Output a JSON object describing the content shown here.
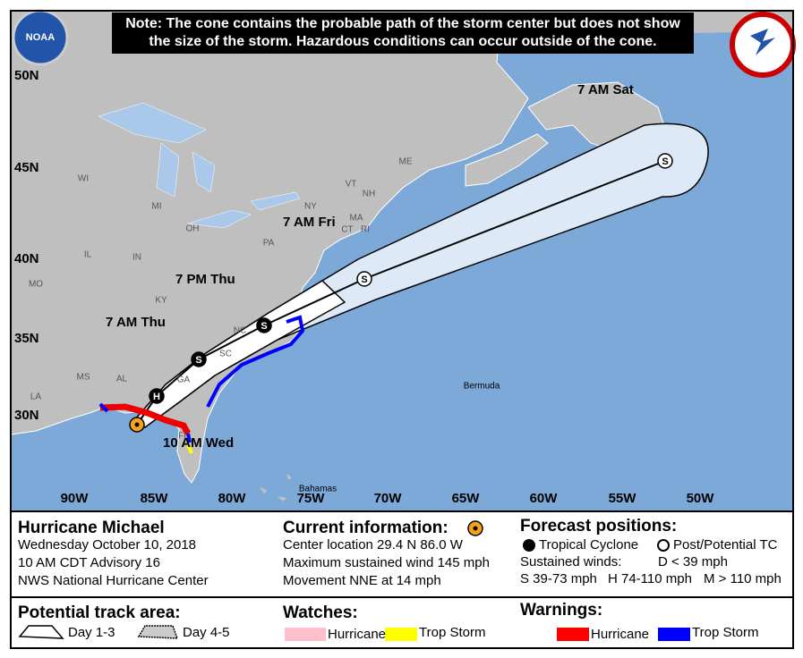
{
  "note": [
    "Note: The cone contains the probable path of the storm center but does not show",
    "the size of the storm. Hazardous conditions can occur outside of the cone."
  ],
  "logos": {
    "noaa": "NOAA"
  },
  "map": {
    "lat_labels": [
      "50N",
      "45N",
      "40N",
      "35N",
      "30N"
    ],
    "lon_labels": [
      "90W",
      "85W",
      "80W",
      "75W",
      "70W",
      "65W",
      "60W",
      "55W",
      "50W"
    ],
    "region_labels": [
      "WI",
      "MI",
      "IL",
      "IN",
      "OH",
      "PA",
      "NY",
      "VT",
      "NH",
      "ME",
      "MA",
      "CT",
      "RI",
      "MO",
      "KY",
      "NC",
      "SC",
      "GA",
      "AL",
      "MS",
      "LA",
      "FL"
    ],
    "forecast_labels": [
      "7 AM Sat",
      "7 AM Fri",
      "7 PM Thu",
      "7 AM Thu",
      "10 AM Wed"
    ],
    "track_symbols": [
      "H",
      "S",
      "S",
      "S",
      "S"
    ],
    "place_labels": [
      "Bermuda",
      "Bahamas"
    ]
  },
  "storm": {
    "name": "Hurricane Michael",
    "date": "Wednesday October 10, 2018",
    "advisory": "10 AM CDT Advisory 16",
    "center": "NWS National Hurricane Center"
  },
  "current": {
    "title": "Current information:",
    "location": "Center location 29.4 N 86.0 W",
    "wind": "Maximum sustained wind 145 mph",
    "movement": "Movement NNE at 14 mph"
  },
  "forecast": {
    "title": "Forecast positions:",
    "tropical": "Tropical Cyclone",
    "post": "Post/Potential TC",
    "winds_label": "Sustained winds:",
    "d": "D < 39 mph",
    "s": "S 39-73 mph",
    "h": "H 74-110 mph",
    "m": "M > 110 mph"
  },
  "track_area": {
    "title": "Potential track area:",
    "day13": "Day 1-3",
    "day45": "Day 4-5"
  },
  "watches": {
    "title": "Watches:",
    "hurricane": "Hurricane",
    "trop_storm": "Trop Storm"
  },
  "warnings": {
    "title": "Warnings:",
    "hurricane": "Hurricane",
    "trop_storm": "Trop Storm"
  }
}
